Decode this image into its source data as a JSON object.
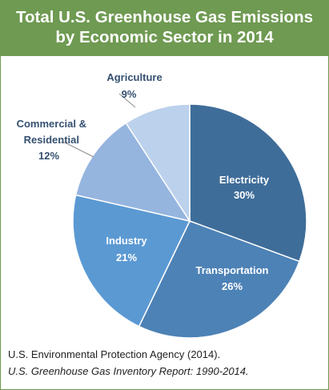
{
  "header": {
    "title_line1": "Total U.S. Greenhouse Gas Emissions",
    "title_line2": "by Economic Sector in 2014"
  },
  "chart_data": {
    "type": "pie",
    "title": "Total U.S. Greenhouse Gas Emissions by Economic Sector in 2014",
    "unit": "%",
    "slices": [
      {
        "name": "Electricity",
        "value": 30,
        "label": "30%",
        "color": "#3f6d99"
      },
      {
        "name": "Transportation",
        "value": 26,
        "label": "26%",
        "color": "#4d82b6"
      },
      {
        "name": "Industry",
        "value": 21,
        "label": "21%",
        "color": "#5b99d3"
      },
      {
        "name": "Commercial & Residential",
        "value": 12,
        "label": "12%",
        "color": "#95b5df"
      },
      {
        "name": "Agriculture",
        "value": 9,
        "label": "9%",
        "color": "#bcd1ec"
      }
    ],
    "label_lines": {
      "electricity": {
        "name": "Electricity",
        "pct": "30%"
      },
      "transportation": {
        "name": "Transportation",
        "pct": "26%"
      },
      "industry": {
        "name": "Industry",
        "pct": "21%"
      },
      "commercial": {
        "name_line1": "Commercial &",
        "name_line2": "Residential",
        "pct": "12%"
      },
      "agriculture": {
        "name": "Agriculture",
        "pct": "9%"
      }
    }
  },
  "source": {
    "line1": "U.S. Environmental Protection Agency (2014).",
    "line2": "U.S. Greenhouse Gas Inventory Report: 1990-2014."
  }
}
